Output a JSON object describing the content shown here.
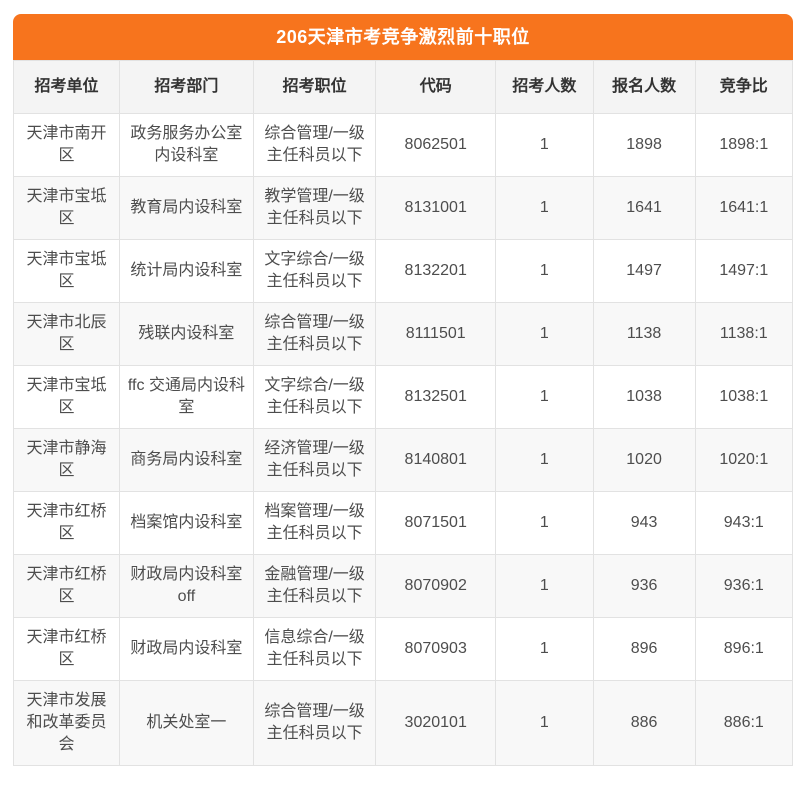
{
  "chart_data": {
    "type": "table",
    "title": "206天津市考竞争激烈前十职位",
    "columns": [
      "招考单位",
      "招考部门",
      "招考职位",
      "代码",
      "招考人数",
      "报名人数",
      "竞争比"
    ],
    "column_keys": [
      "unit",
      "department",
      "position",
      "code",
      "openings",
      "applicants",
      "ratio"
    ],
    "rows": [
      [
        "天津市南开区",
        "政务服务办公室内设科室",
        "综合管理/一级主任科员以下",
        "8062501",
        1,
        1898,
        "1898:1"
      ],
      [
        "天津市宝坻区",
        "教育局内设科室",
        "教学管理/一级主任科员以下",
        "8131001",
        1,
        1641,
        "1641:1"
      ],
      [
        "天津市宝坻区",
        "统计局内设科室",
        "文字综合/一级主任科员以下",
        "8132201",
        1,
        1497,
        "1497:1"
      ],
      [
        "天津市北辰区",
        "残联内设科室",
        "综合管理/一级主任科员以下",
        "8111501",
        1,
        1138,
        "1138:1"
      ],
      [
        "天津市宝坻区",
        "ffc 交通局内设科室",
        "文字综合/一级主任科员以下",
        "8132501",
        1,
        1038,
        "1038:1"
      ],
      [
        "天津市静海区",
        "商务局内设科室",
        "经济管理/一级主任科员以下",
        "8140801",
        1,
        1020,
        "1020:1"
      ],
      [
        "天津市红桥区",
        "档案馆内设科室",
        "档案管理/一级主任科员以下",
        "8071501",
        1,
        943,
        "943:1"
      ],
      [
        "天津市红桥区",
        "财政局内设科室 off",
        "金融管理/一级主任科员以下",
        "8070902",
        1,
        936,
        "936:1"
      ],
      [
        "天津市红桥区",
        "财政局内设科室",
        "信息综合/一级主任科员以下",
        "8070903",
        1,
        896,
        "896:1"
      ],
      [
        "天津市发展和改革委员会",
        "机关处室一",
        "综合管理/一级主任科员以下",
        "3020101",
        1,
        886,
        "886:1"
      ]
    ]
  },
  "colors": {
    "accent": "#f7741d",
    "accent_text": "#ffffff",
    "border": "#e2e2e2",
    "header_bg": "#f4f4f4",
    "stripe": "#f8f8f8",
    "header_text": "#333333",
    "cell_text": "#4d4d4d",
    "page_bg": "#ffffff"
  }
}
